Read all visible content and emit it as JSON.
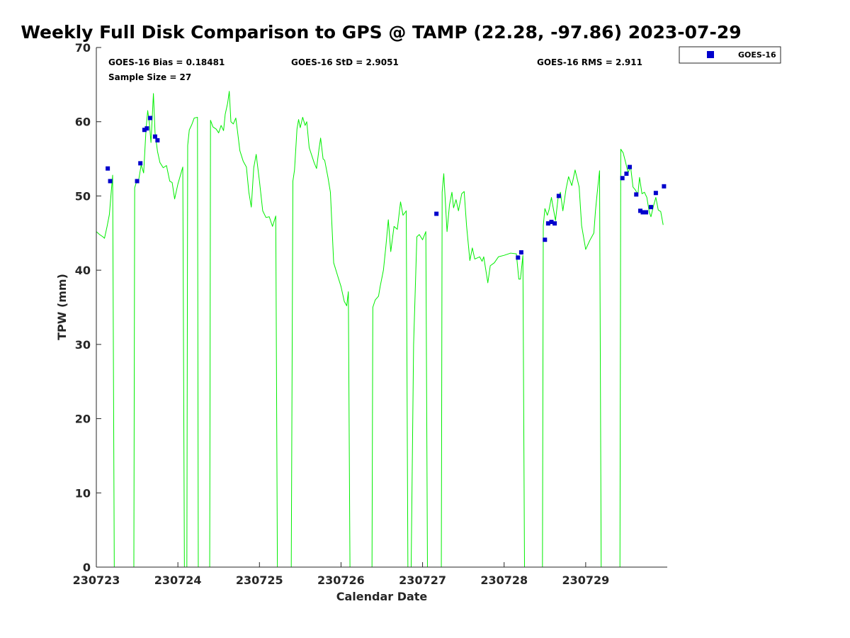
{
  "chart_data": {
    "type": "line",
    "title": "Weekly Full Disk Comparison to GPS @ TAMP (22.28, -97.86) 2023-07-29",
    "xlabel": "Calendar Date",
    "ylabel": "TPW (mm)",
    "xlim": [
      230723,
      230730
    ],
    "ylim": [
      0,
      70
    ],
    "x_ticks": [
      "230723",
      "230724",
      "230725",
      "230726",
      "230727",
      "230728",
      "230729"
    ],
    "y_ticks": [
      "0",
      "10",
      "20",
      "30",
      "40",
      "50",
      "60",
      "70"
    ],
    "grid": false,
    "legend_position": "top-right (outside)",
    "stats": {
      "bias": "GOES-16 Bias = 0.18481",
      "std": "GOES-16 StD = 2.9051",
      "rms": "GOES-16 RMS = 2.911",
      "sample": "Sample Size = 27"
    },
    "series": [
      {
        "kind": "line",
        "color": "#00ee00",
        "points": [
          [
            230723.0,
            45.2
          ],
          [
            230723.04,
            44.8
          ],
          [
            230723.08,
            44.5
          ],
          [
            230723.1,
            44.3
          ],
          [
            230723.13,
            45.8
          ],
          [
            230723.16,
            47.5
          ],
          [
            230723.18,
            50.2
          ],
          [
            230723.2,
            52.8
          ],
          [
            230723.22,
            0
          ],
          [
            230723.46,
            0
          ],
          [
            230723.47,
            51.1
          ],
          [
            230723.49,
            51.8
          ],
          [
            230723.52,
            52.2
          ],
          [
            230723.55,
            54.2
          ],
          [
            230723.58,
            53.1
          ],
          [
            230723.61,
            59.1
          ],
          [
            230723.63,
            61.5
          ],
          [
            230723.65,
            59.8
          ],
          [
            230723.67,
            57.2
          ],
          [
            230723.7,
            63.8
          ],
          [
            230723.72,
            58.5
          ],
          [
            230723.75,
            56.0
          ],
          [
            230723.78,
            54.5
          ],
          [
            230723.82,
            53.8
          ],
          [
            230723.86,
            54.1
          ],
          [
            230723.9,
            52.0
          ],
          [
            230723.93,
            51.8
          ],
          [
            230723.96,
            49.6
          ],
          [
            230724.0,
            51.6
          ],
          [
            230724.06,
            53.9
          ],
          [
            230724.08,
            0
          ],
          [
            230724.11,
            0
          ],
          [
            230724.12,
            56.8
          ],
          [
            230724.14,
            58.9
          ],
          [
            230724.17,
            59.6
          ],
          [
            230724.2,
            60.5
          ],
          [
            230724.24,
            60.6
          ],
          [
            230724.25,
            0
          ],
          [
            230724.39,
            0
          ],
          [
            230724.4,
            60.2
          ],
          [
            230724.43,
            59.3
          ],
          [
            230724.47,
            59.0
          ],
          [
            230724.5,
            58.5
          ],
          [
            230724.53,
            59.5
          ],
          [
            230724.56,
            58.8
          ],
          [
            230724.58,
            61.0
          ],
          [
            230724.61,
            62.5
          ],
          [
            230724.63,
            64.1
          ],
          [
            230724.65,
            60.0
          ],
          [
            230724.68,
            59.7
          ],
          [
            230724.71,
            60.5
          ],
          [
            230724.73,
            58.8
          ],
          [
            230724.76,
            56.1
          ],
          [
            230724.8,
            54.7
          ],
          [
            230724.84,
            53.9
          ],
          [
            230724.87,
            50.5
          ],
          [
            230724.9,
            48.5
          ],
          [
            230724.93,
            53.8
          ],
          [
            230724.96,
            55.6
          ],
          [
            230725.0,
            52.0
          ],
          [
            230725.04,
            48.0
          ],
          [
            230725.08,
            47.1
          ],
          [
            230725.12,
            47.2
          ],
          [
            230725.16,
            45.9
          ],
          [
            230725.2,
            47.3
          ],
          [
            230725.22,
            0
          ],
          [
            230725.39,
            0
          ],
          [
            230725.41,
            52.0
          ],
          [
            230725.43,
            53.5
          ],
          [
            230725.46,
            59.0
          ],
          [
            230725.48,
            60.3
          ],
          [
            230725.5,
            59.2
          ],
          [
            230725.53,
            60.6
          ],
          [
            230725.56,
            59.5
          ],
          [
            230725.58,
            60.0
          ],
          [
            230725.61,
            56.5
          ],
          [
            230725.64,
            55.5
          ],
          [
            230725.67,
            54.5
          ],
          [
            230725.7,
            53.7
          ],
          [
            230725.73,
            56.3
          ],
          [
            230725.75,
            57.8
          ],
          [
            230725.78,
            55.0
          ],
          [
            230725.8,
            54.8
          ],
          [
            230725.84,
            52.5
          ],
          [
            230725.87,
            50.5
          ],
          [
            230725.91,
            41.0
          ],
          [
            230725.96,
            39.2
          ],
          [
            230726.0,
            37.8
          ],
          [
            230726.04,
            35.8
          ],
          [
            230726.07,
            35.2
          ],
          [
            230726.09,
            37.1
          ],
          [
            230726.11,
            0
          ],
          [
            230726.38,
            0
          ],
          [
            230726.39,
            35.0
          ],
          [
            230726.42,
            36.0
          ],
          [
            230726.46,
            36.5
          ],
          [
            230726.48,
            37.8
          ],
          [
            230726.52,
            40.0
          ],
          [
            230726.55,
            43.2
          ],
          [
            230726.58,
            46.8
          ],
          [
            230726.61,
            42.5
          ],
          [
            230726.65,
            45.9
          ],
          [
            230726.69,
            45.5
          ],
          [
            230726.73,
            49.2
          ],
          [
            230726.76,
            47.4
          ],
          [
            230726.8,
            48.0
          ],
          [
            230726.82,
            0
          ],
          [
            230726.86,
            0
          ],
          [
            230726.89,
            30.0
          ],
          [
            230726.93,
            44.5
          ],
          [
            230726.96,
            44.8
          ],
          [
            230727.0,
            44.1
          ],
          [
            230727.04,
            45.2
          ],
          [
            230727.06,
            0
          ],
          [
            230727.23,
            0
          ],
          [
            230727.24,
            50.5
          ],
          [
            230727.26,
            53.0
          ],
          [
            230727.3,
            45.2
          ],
          [
            230727.33,
            48.8
          ],
          [
            230727.36,
            50.5
          ],
          [
            230727.38,
            48.4
          ],
          [
            230727.41,
            49.5
          ],
          [
            230727.44,
            48.0
          ],
          [
            230727.48,
            50.3
          ],
          [
            230727.51,
            50.6
          ],
          [
            230727.54,
            45.9
          ],
          [
            230727.58,
            41.3
          ],
          [
            230727.61,
            43.0
          ],
          [
            230727.64,
            41.5
          ],
          [
            230727.7,
            41.8
          ],
          [
            230727.73,
            41.2
          ],
          [
            230727.75,
            41.8
          ],
          [
            230727.8,
            38.3
          ],
          [
            230727.83,
            40.6
          ],
          [
            230727.88,
            41.0
          ],
          [
            230727.93,
            41.8
          ],
          [
            230728.0,
            42.0
          ],
          [
            230728.08,
            42.3
          ],
          [
            230728.15,
            42.2
          ],
          [
            230728.18,
            38.8
          ],
          [
            230728.2,
            38.8
          ],
          [
            230728.23,
            42.0
          ],
          [
            230728.25,
            0
          ],
          [
            230728.47,
            0
          ],
          [
            230728.48,
            46.0
          ],
          [
            230728.5,
            48.3
          ],
          [
            230728.53,
            47.4
          ],
          [
            230728.55,
            48.1
          ],
          [
            230728.58,
            49.8
          ],
          [
            230728.6,
            48.5
          ],
          [
            230728.63,
            46.7
          ],
          [
            230728.66,
            49.6
          ],
          [
            230728.69,
            50.5
          ],
          [
            230728.72,
            48.0
          ],
          [
            230728.76,
            51.0
          ],
          [
            230728.79,
            52.6
          ],
          [
            230728.83,
            51.4
          ],
          [
            230728.87,
            53.5
          ],
          [
            230728.92,
            51.2
          ],
          [
            230728.95,
            46.0
          ],
          [
            230729.0,
            42.8
          ],
          [
            230729.05,
            44.0
          ],
          [
            230729.1,
            45.0
          ],
          [
            230729.12,
            48.0
          ],
          [
            230729.14,
            50.3
          ],
          [
            230729.17,
            53.4
          ],
          [
            230729.19,
            0
          ],
          [
            230729.42,
            0
          ],
          [
            230729.43,
            56.3
          ],
          [
            230729.46,
            55.8
          ],
          [
            230729.49,
            54.5
          ],
          [
            230729.52,
            53.1
          ],
          [
            230729.55,
            54.0
          ],
          [
            230729.58,
            51.2
          ],
          [
            230729.61,
            50.8
          ],
          [
            230729.64,
            50.2
          ],
          [
            230729.66,
            52.5
          ],
          [
            230729.69,
            50.3
          ],
          [
            230729.72,
            50.5
          ],
          [
            230729.75,
            49.8
          ],
          [
            230729.78,
            47.8
          ],
          [
            230729.8,
            47.2
          ],
          [
            230729.83,
            48.6
          ],
          [
            230729.86,
            49.8
          ],
          [
            230729.89,
            48.1
          ],
          [
            230729.92,
            47.9
          ],
          [
            230729.95,
            46.1
          ]
        ]
      },
      {
        "name": "GOES-16",
        "kind": "scatter",
        "marker": "square",
        "color": "#0000cc",
        "points": [
          [
            230723.14,
            53.7
          ],
          [
            230723.17,
            52.0
          ],
          [
            230723.5,
            52.0
          ],
          [
            230723.54,
            54.4
          ],
          [
            230723.59,
            58.9
          ],
          [
            230723.62,
            59.1
          ],
          [
            230723.66,
            60.5
          ],
          [
            230723.72,
            58.0
          ],
          [
            230723.75,
            57.5
          ],
          [
            230727.17,
            47.6
          ],
          [
            230728.17,
            41.7
          ],
          [
            230728.21,
            42.4
          ],
          [
            230728.5,
            44.1
          ],
          [
            230728.54,
            46.3
          ],
          [
            230728.58,
            46.5
          ],
          [
            230728.62,
            46.3
          ],
          [
            230728.67,
            50.0
          ],
          [
            230729.45,
            52.4
          ],
          [
            230729.5,
            53.0
          ],
          [
            230729.54,
            53.9
          ],
          [
            230729.62,
            50.2
          ],
          [
            230729.67,
            48.0
          ],
          [
            230729.7,
            47.8
          ],
          [
            230729.74,
            47.8
          ],
          [
            230729.8,
            48.5
          ],
          [
            230729.86,
            50.4
          ],
          [
            230729.96,
            51.3
          ]
        ]
      }
    ]
  }
}
